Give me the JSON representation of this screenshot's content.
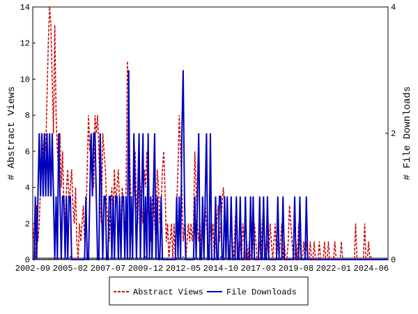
{
  "chart_data": {
    "type": "line",
    "y_label": "# Abstract Views",
    "y2_label": "# File Downloads",
    "categories": [
      "2002-09",
      null,
      null,
      null,
      null,
      null,
      null,
      null,
      null,
      null,
      null,
      null,
      null,
      null,
      null,
      null,
      null,
      null,
      null,
      null,
      null,
      null,
      null,
      null,
      null,
      null,
      null,
      null,
      null,
      "2005-02",
      null,
      null,
      null,
      null,
      null,
      null,
      null,
      null,
      null,
      null,
      null,
      null,
      null,
      null,
      null,
      null,
      null,
      null,
      null,
      null,
      null,
      null,
      null,
      null,
      null,
      null,
      null,
      null,
      "2007-07",
      null,
      null,
      null,
      null,
      null,
      null,
      null,
      null,
      null,
      null,
      null,
      null,
      null,
      null,
      null,
      null,
      null,
      null,
      null,
      null,
      null,
      null,
      null,
      null,
      null,
      null,
      null,
      null,
      "2009-12",
      null,
      null,
      null,
      null,
      null,
      null,
      null,
      null,
      null,
      null,
      null,
      null,
      null,
      null,
      null,
      null,
      null,
      null,
      null,
      null,
      null,
      null,
      null,
      null,
      null,
      null,
      null,
      null,
      "2012-05",
      null,
      null,
      null,
      null,
      null,
      null,
      null,
      null,
      null,
      null,
      null,
      null,
      null,
      null,
      null,
      null,
      null,
      null,
      null,
      null,
      null,
      null,
      null,
      null,
      null,
      null,
      null,
      null,
      "2014-10",
      null,
      null,
      null,
      null,
      null,
      null,
      null,
      null,
      null,
      null,
      null,
      null,
      null,
      null,
      null,
      null,
      null,
      null,
      null,
      null,
      null,
      null,
      null,
      null,
      null,
      null,
      null,
      null,
      "2017-03",
      null,
      null,
      null,
      null,
      null,
      null,
      null,
      null,
      null,
      null,
      null,
      null,
      null,
      null,
      null,
      null,
      null,
      null,
      null,
      null,
      null,
      null,
      null,
      null,
      null,
      null,
      null,
      null,
      "2019-08",
      null,
      null,
      null,
      null,
      null,
      null,
      null,
      null,
      null,
      null,
      null,
      null,
      null,
      null,
      null,
      null,
      null,
      null,
      null,
      null,
      null,
      null,
      null,
      null,
      null,
      null,
      null,
      null,
      "2022-01",
      null,
      null,
      null,
      null,
      null,
      null,
      null,
      null,
      null,
      null,
      null,
      null,
      null,
      null,
      null,
      null,
      null,
      null,
      null,
      null,
      null,
      null,
      null,
      null,
      null,
      null,
      null,
      null,
      "2024-06",
      null,
      null,
      null,
      null,
      null,
      null,
      null,
      null,
      null,
      null,
      null,
      null,
      null
    ],
    "series": [
      {
        "name": "Abstract Views",
        "color": "#cc0000",
        "dash": true,
        "axis": "y",
        "values": [
          2,
          1,
          0,
          3,
          1,
          2,
          4,
          5,
          6,
          7,
          6,
          9,
          12,
          14,
          13,
          10,
          7,
          13,
          8,
          6,
          5,
          7,
          4,
          6,
          3,
          2,
          4,
          5,
          3,
          4,
          5,
          3,
          2,
          4,
          1,
          0,
          2,
          1,
          2,
          3,
          1,
          2,
          5,
          8,
          6,
          7,
          5,
          4,
          8,
          7,
          8,
          6,
          3,
          2,
          7,
          6,
          5,
          3,
          2,
          1,
          3,
          4,
          2,
          5,
          3,
          4,
          5,
          3,
          2,
          4,
          3,
          1,
          4,
          11,
          9,
          5,
          3,
          2,
          4,
          6,
          3,
          2,
          5,
          4,
          3,
          2,
          5,
          4,
          6,
          3,
          2,
          1,
          3,
          4,
          2,
          1,
          5,
          4,
          2,
          3,
          5,
          6,
          4,
          1,
          2,
          0,
          1,
          2,
          0,
          2,
          0,
          3,
          5,
          8,
          6,
          4,
          1,
          2,
          0,
          1,
          2,
          1,
          2,
          1,
          2,
          6,
          4,
          2,
          1,
          2,
          0,
          2,
          1,
          3,
          2,
          1,
          0,
          2,
          1,
          2,
          0,
          1,
          2,
          3,
          1,
          2,
          3,
          4,
          3,
          1,
          2,
          0,
          1,
          2,
          1,
          0,
          2,
          3,
          1,
          0,
          1,
          0,
          2,
          1,
          0,
          1,
          0,
          1,
          0,
          0,
          1,
          2,
          1,
          0,
          0,
          1,
          0,
          2,
          3,
          1,
          0,
          1,
          0,
          2,
          1,
          0,
          1,
          2,
          0,
          1,
          0,
          1,
          2,
          0,
          1,
          0,
          0,
          1,
          3,
          2,
          1,
          0,
          0,
          1,
          0,
          2,
          1,
          0,
          0,
          1,
          0,
          1,
          0,
          0,
          1,
          0,
          0,
          1,
          0,
          0,
          0,
          1,
          0,
          0,
          0,
          1,
          0,
          0,
          1,
          0,
          0,
          0,
          0,
          1,
          0,
          0,
          0,
          0,
          1,
          0,
          0,
          0,
          0,
          0,
          0,
          0,
          0,
          0,
          0,
          2,
          0,
          0,
          0,
          0,
          0,
          0,
          2,
          0,
          0,
          1,
          0,
          0,
          0,
          0,
          0,
          0,
          0,
          0,
          0,
          0,
          0,
          0,
          0,
          0,
          0
        ]
      },
      {
        "name": "File Downloads",
        "color": "#0000bb",
        "dash": false,
        "axis": "y2",
        "values": [
          0,
          0,
          1,
          0,
          1,
          2,
          1,
          2,
          1,
          2,
          1,
          2,
          1,
          2,
          1,
          2,
          1,
          0,
          1,
          0,
          2,
          1,
          0,
          1,
          1,
          0,
          1,
          0,
          1,
          1,
          0,
          0,
          0,
          0,
          0,
          0,
          0,
          0,
          0,
          0,
          0,
          1,
          0,
          0,
          1,
          2,
          1,
          2,
          2,
          1,
          0,
          0,
          2,
          1,
          0,
          1,
          1,
          0,
          0,
          1,
          1,
          0,
          1,
          0,
          1,
          1,
          0,
          1,
          0,
          1,
          1,
          0,
          1,
          0,
          3,
          0,
          1,
          0,
          2,
          1,
          0,
          1,
          2,
          0,
          1,
          2,
          0,
          1,
          0,
          2,
          0,
          1,
          0,
          1,
          2,
          0,
          1,
          0,
          0,
          1,
          0,
          0,
          0,
          0,
          0,
          0,
          0,
          0,
          0,
          0,
          0,
          1,
          0,
          1,
          0,
          2,
          3,
          1,
          0,
          0,
          0,
          0,
          0,
          0,
          0,
          1,
          0,
          1,
          2,
          0,
          0,
          1,
          0,
          1,
          2,
          0,
          0,
          2,
          0,
          0,
          0,
          1,
          0,
          0,
          1,
          1,
          0,
          0,
          1,
          0,
          1,
          0,
          0,
          1,
          0,
          0,
          0,
          1,
          0,
          0,
          1,
          0,
          0,
          0,
          1,
          0,
          0,
          0,
          1,
          0,
          1,
          0,
          0,
          0,
          0,
          1,
          0,
          0,
          1,
          0,
          0,
          1,
          0,
          0,
          0,
          0,
          0,
          0,
          0,
          1,
          0,
          0,
          0,
          1,
          0,
          0,
          0,
          0,
          0,
          0,
          0,
          0,
          1,
          0,
          0,
          0,
          1,
          0,
          0,
          0,
          0,
          1,
          0,
          0,
          0,
          0,
          0,
          0,
          0,
          0,
          0,
          0,
          0,
          0,
          0,
          0,
          0,
          0,
          0,
          0,
          0,
          0,
          0,
          0,
          0,
          0,
          0,
          0,
          0,
          0,
          0,
          0,
          0,
          0,
          0,
          0,
          0,
          0,
          0,
          0,
          0,
          0,
          0,
          0,
          0,
          0,
          0,
          0,
          0,
          0,
          0,
          0,
          0,
          0,
          0,
          0,
          0,
          0,
          0,
          0,
          0,
          0,
          0,
          0,
          0
        ]
      }
    ],
    "ylim": [
      0,
      14
    ],
    "yticks": [
      0,
      2,
      4,
      6,
      8,
      10,
      12,
      14
    ],
    "y2lim": [
      0,
      4
    ],
    "y2ticks": [
      0,
      2,
      4
    ],
    "legend": "bottom"
  }
}
